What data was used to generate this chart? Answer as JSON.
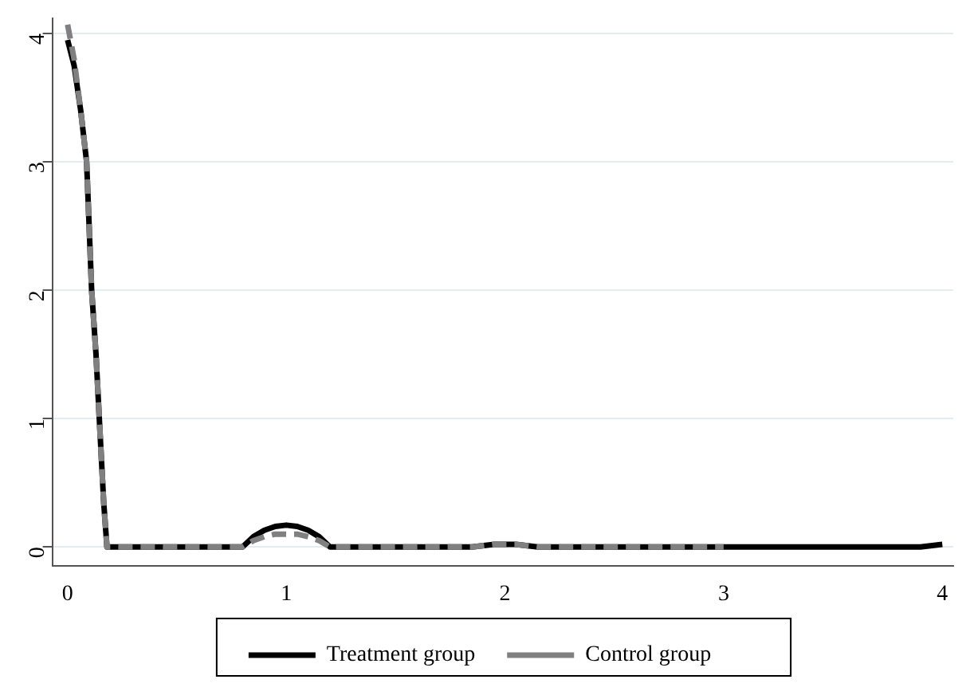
{
  "chart_data": {
    "type": "line",
    "x": [
      0,
      0.03,
      0.06,
      0.087,
      0.11,
      0.13,
      0.145,
      0.165,
      0.18,
      0.5,
      0.8,
      0.85,
      0.9,
      0.95,
      1,
      1.05,
      1.1,
      1.15,
      1.2,
      1.5,
      1.85,
      1.95,
      2.05,
      2.15,
      2.5,
      3,
      3.5,
      3.9,
      4
    ],
    "series": [
      {
        "name": "Treatment group",
        "color": "#000000",
        "line_style": "solid",
        "values": [
          3.95,
          3.75,
          3.4,
          3,
          2,
          1.5,
          1,
          0.35,
          0,
          0,
          0,
          0.08,
          0.13,
          0.16,
          0.17,
          0.16,
          0.13,
          0.08,
          0,
          0,
          0,
          0.02,
          0.02,
          0,
          0,
          0,
          0,
          0,
          0.02
        ]
      },
      {
        "name": "Control group",
        "color": "#808080",
        "line_style": "dashed",
        "values": [
          4.07,
          3.8,
          3.4,
          3,
          2,
          1.5,
          1,
          0.35,
          0,
          0,
          0,
          0.05,
          0.08,
          0.1,
          0.1,
          0.1,
          0.08,
          0.05,
          0,
          0,
          0,
          0.02,
          0.02,
          0,
          0,
          0,
          null,
          null,
          null
        ]
      }
    ],
    "xlim": [
      -0.07,
      4.05
    ],
    "ylim": [
      -0.15,
      4.12
    ],
    "xticks": [
      0,
      1,
      2,
      3,
      4
    ],
    "yticks": [
      0,
      1,
      2,
      3,
      4
    ],
    "grid": "y",
    "legend": "bottom"
  }
}
